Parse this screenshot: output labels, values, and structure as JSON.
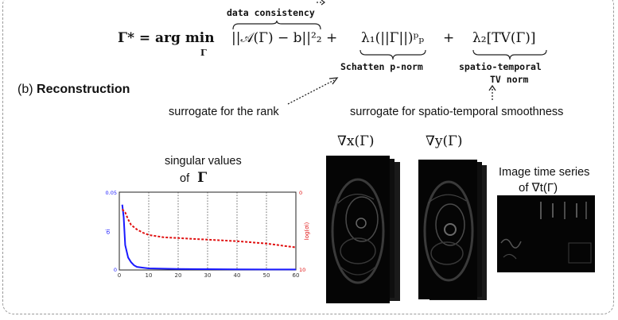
{
  "equation": {
    "lhs": "Γ* = arg min",
    "subscript": "Γ",
    "term1": "||𝒜(Γ) − b||²₂",
    "plus1": "+",
    "term2": "λ₁(||Γ||)ᵖₚ",
    "plus2": "+",
    "term3": "λ₂[TV(Γ)]"
  },
  "annotations": {
    "data_consistency": "data consistency",
    "schatten": "Schatten p-norm",
    "tv_norm_line1": "spatio-temporal",
    "tv_norm_line2": "TV norm"
  },
  "section": {
    "prefix": "(b)",
    "title": "Reconstruction"
  },
  "labels": {
    "rank": "surrogate for the rank",
    "smoothness": "surrogate for spatio-temporal smoothness",
    "singular_line1": "singular values",
    "singular_line2": "of",
    "singular_symbol": "Γ",
    "grad_x": "∇x(Γ)",
    "grad_y": "∇y(Γ)",
    "time_series_line1": "Image time series",
    "time_series_line2": "of ∇t(Γ)"
  },
  "colors": {
    "sigma_series": "#1a1aff",
    "log_series": "#e01010"
  },
  "chart_data": {
    "type": "line",
    "title": "",
    "xlabel": "",
    "ylabel_left": "σi",
    "ylabel_right": "log(σi)",
    "x_ticks": [
      "0",
      "10",
      "20",
      "30",
      "40",
      "50",
      "60"
    ],
    "y_left_ticks": [
      "0",
      "0.05"
    ],
    "y_right_ticks": [
      "0",
      "10"
    ],
    "xlim": [
      0,
      60
    ],
    "ylim_left": [
      0,
      0.05
    ],
    "ylim_right": [
      10,
      0
    ],
    "grid": "vertical dotted",
    "series": [
      {
        "name": "σi",
        "axis": "left",
        "style": "solid",
        "x": [
          1,
          1.5,
          2,
          3,
          4,
          5,
          6,
          8,
          10,
          15,
          20,
          30,
          40,
          50,
          60
        ],
        "values": [
          0.042,
          0.034,
          0.016,
          0.008,
          0.005,
          0.003,
          0.002,
          0.0015,
          0.001,
          0.0008,
          0.0006,
          0.0005,
          0.0004,
          0.0003,
          0.0003
        ]
      },
      {
        "name": "log(σi)",
        "axis": "right",
        "style": "dashed",
        "x": [
          1,
          2,
          3,
          4,
          5,
          6,
          8,
          10,
          15,
          20,
          30,
          40,
          50,
          60
        ],
        "values": [
          2.2,
          2.6,
          3.5,
          4.2,
          4.5,
          4.8,
          5.2,
          5.5,
          5.8,
          5.9,
          6.1,
          6.3,
          6.6,
          7.1
        ]
      }
    ]
  }
}
